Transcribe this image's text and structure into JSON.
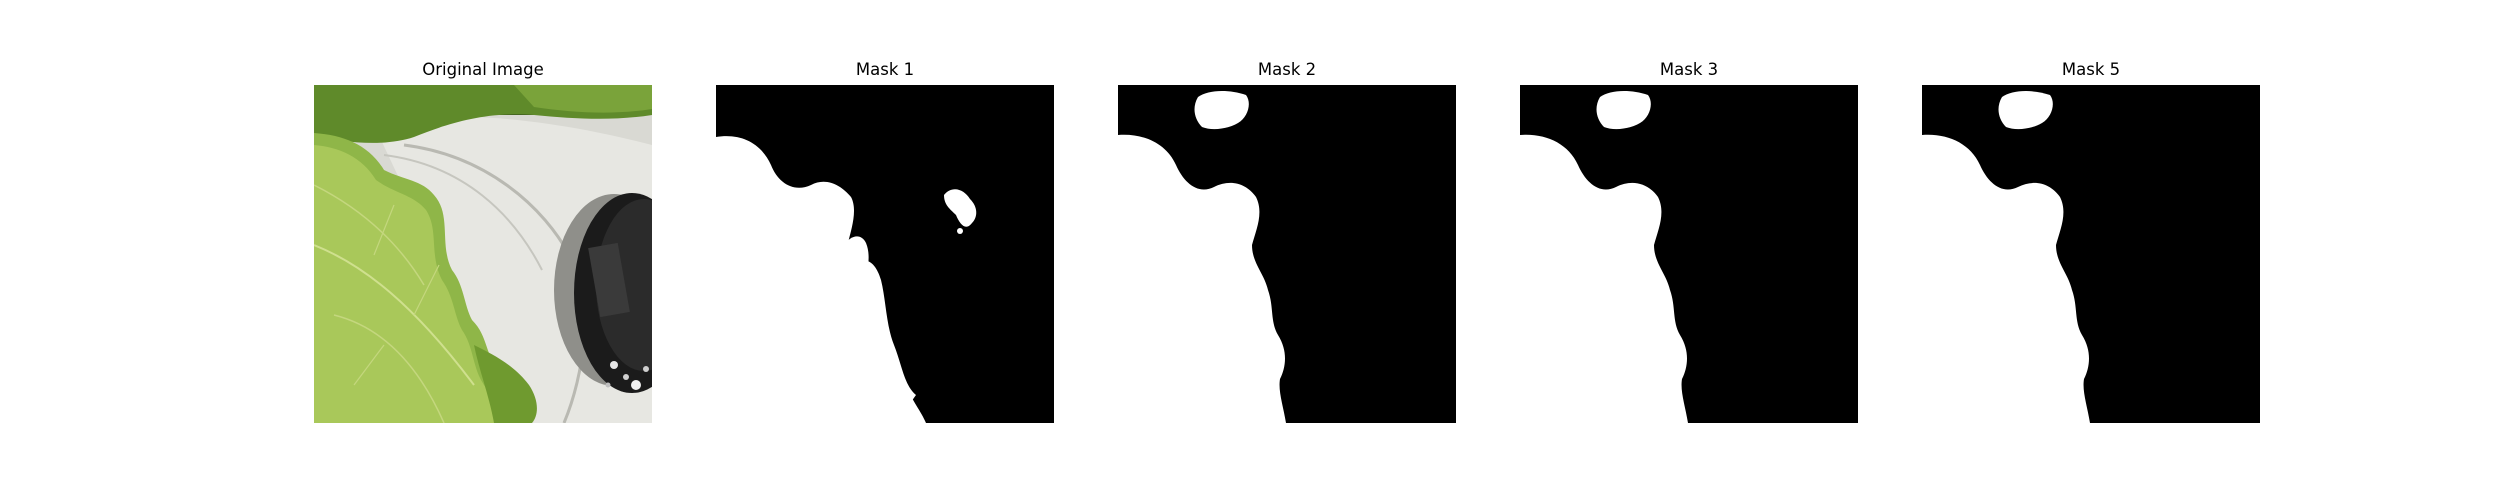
{
  "figure": {
    "panels": [
      {
        "title": "Original Image"
      },
      {
        "title": "Mask 1"
      },
      {
        "title": "Mask 2"
      },
      {
        "title": "Mask 3"
      },
      {
        "title": "Mask 5"
      }
    ]
  },
  "colors": {
    "mask_background": "#000000",
    "mask_foreground": "#ffffff",
    "leaf_light": "#a9c85a",
    "leaf_dark": "#6f9a2f",
    "tray_white": "#dcdcd6",
    "pot_dark": "#1b1b1b"
  }
}
